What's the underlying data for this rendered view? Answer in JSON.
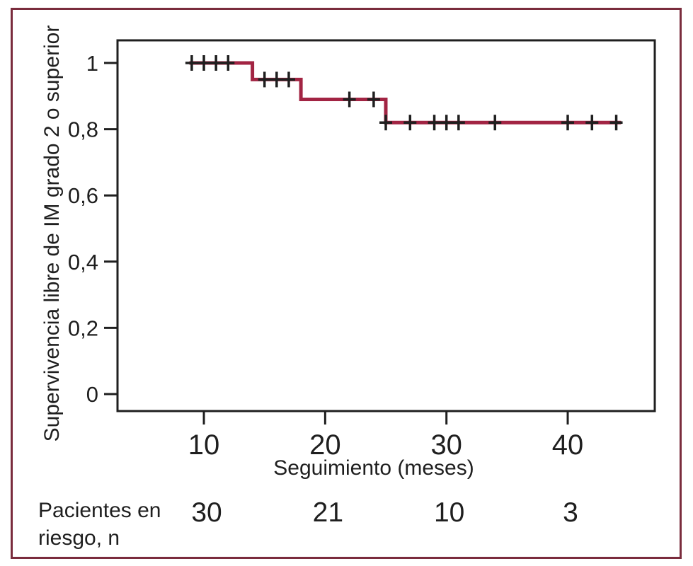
{
  "figure": {
    "y_axis_label": "Supervivencia libre de IM grado 2 o superior",
    "x_axis_label": "Seguimiento (meses)",
    "risk_label_line1": "Pacientes en",
    "risk_label_line2": "riesgo, n"
  },
  "chart_data": {
    "type": "line",
    "subtype": "kaplan-meier-step-curve",
    "title": "",
    "xlabel": "Seguimiento (meses)",
    "ylabel": "Supervivencia libre de IM grado 2 o superior",
    "xlim": [
      2.9,
      47.3
    ],
    "ylim": [
      -0.05,
      1.07
    ],
    "grid": false,
    "legend": false,
    "x_ticks": [
      {
        "value": 10,
        "label": "10"
      },
      {
        "value": 20,
        "label": "20"
      },
      {
        "value": 30,
        "label": "30"
      },
      {
        "value": 40,
        "label": "40"
      }
    ],
    "y_ticks": [
      {
        "value": 1,
        "label": "1"
      },
      {
        "value": 0.8,
        "label": "0,8"
      },
      {
        "value": 0.6,
        "label": "0,6"
      },
      {
        "value": 0.4,
        "label": "0,4"
      },
      {
        "value": 0.2,
        "label": "0,2"
      },
      {
        "value": 0,
        "label": "0"
      }
    ],
    "steps": [
      {
        "from_month": 8.8,
        "to_month": 14,
        "survival": 1.0
      },
      {
        "from_month": 14,
        "to_month": 18,
        "survival": 0.95
      },
      {
        "from_month": 18,
        "to_month": 25,
        "survival": 0.89
      },
      {
        "from_month": 25,
        "to_month": 44.4,
        "survival": 0.82
      }
    ],
    "censor_marks": [
      {
        "month": 9,
        "survival": 1.0
      },
      {
        "month": 10,
        "survival": 1.0
      },
      {
        "month": 11,
        "survival": 1.0
      },
      {
        "month": 12,
        "survival": 1.0
      },
      {
        "month": 15,
        "survival": 0.95
      },
      {
        "month": 16,
        "survival": 0.95
      },
      {
        "month": 17,
        "survival": 0.95
      },
      {
        "month": 22,
        "survival": 0.89
      },
      {
        "month": 24,
        "survival": 0.89
      },
      {
        "month": 25,
        "survival": 0.82
      },
      {
        "month": 27,
        "survival": 0.82
      },
      {
        "month": 29,
        "survival": 0.82
      },
      {
        "month": 30,
        "survival": 0.82
      },
      {
        "month": 31,
        "survival": 0.82
      },
      {
        "month": 34,
        "survival": 0.82
      },
      {
        "month": 40,
        "survival": 0.82
      },
      {
        "month": 42,
        "survival": 0.82
      },
      {
        "month": 44,
        "survival": 0.82
      }
    ],
    "patients_at_risk": [
      {
        "month": 10,
        "n": "30"
      },
      {
        "month": 20,
        "n": "21"
      },
      {
        "month": 30,
        "n": "10"
      },
      {
        "month": 40,
        "n": "3"
      }
    ],
    "colors": {
      "curve": "#a22443",
      "frame": "#7a2c3d",
      "axis": "#1f1f1f",
      "text": "#1f1f1f"
    }
  }
}
